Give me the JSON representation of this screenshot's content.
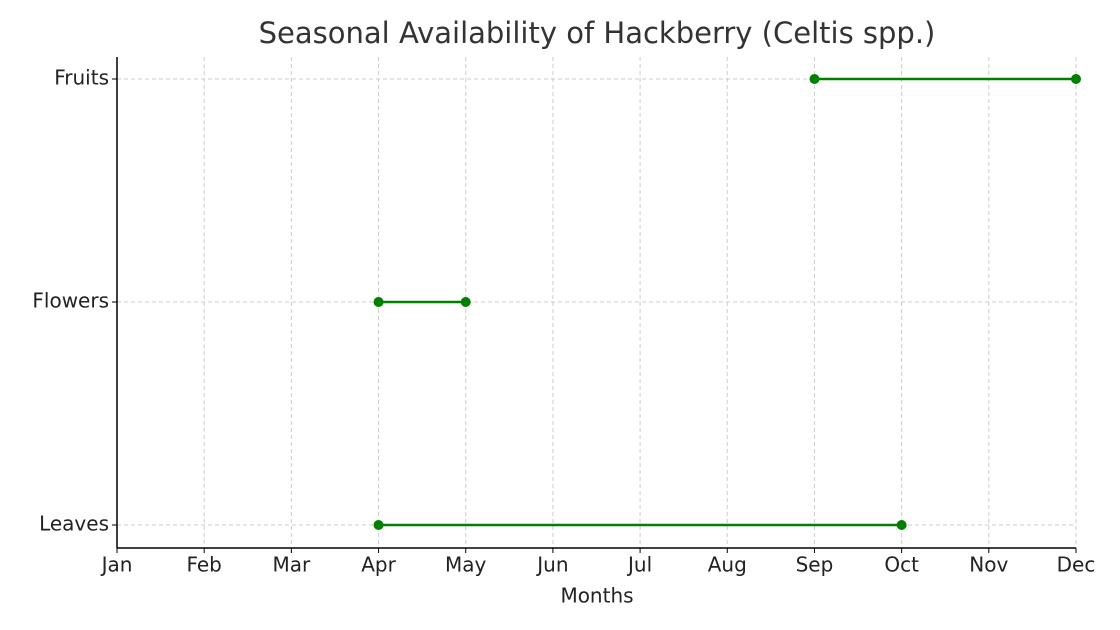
{
  "chart_data": {
    "type": "range",
    "title": "Seasonal Availability of Hackberry (Celtis spp.)",
    "x_label": "Months",
    "categories": [
      "Leaves",
      "Flowers",
      "Fruits"
    ],
    "starts": [
      4,
      4,
      9
    ],
    "ends": [
      10,
      5,
      12
    ],
    "color": "#008000",
    "xlim": [
      1,
      12
    ],
    "xticks": [
      {
        "value": 1,
        "label": "Jan"
      },
      {
        "value": 2,
        "label": "Feb"
      },
      {
        "value": 3,
        "label": "Mar"
      },
      {
        "value": 4,
        "label": "Apr"
      },
      {
        "value": 5,
        "label": "May"
      },
      {
        "value": 6,
        "label": "Jun"
      },
      {
        "value": 7,
        "label": "Jul"
      },
      {
        "value": 8,
        "label": "Aug"
      },
      {
        "value": 9,
        "label": "Sep"
      },
      {
        "value": 10,
        "label": "Oct"
      },
      {
        "value": 11,
        "label": "Nov"
      },
      {
        "value": 12,
        "label": "Dec"
      }
    ],
    "grid": true
  }
}
